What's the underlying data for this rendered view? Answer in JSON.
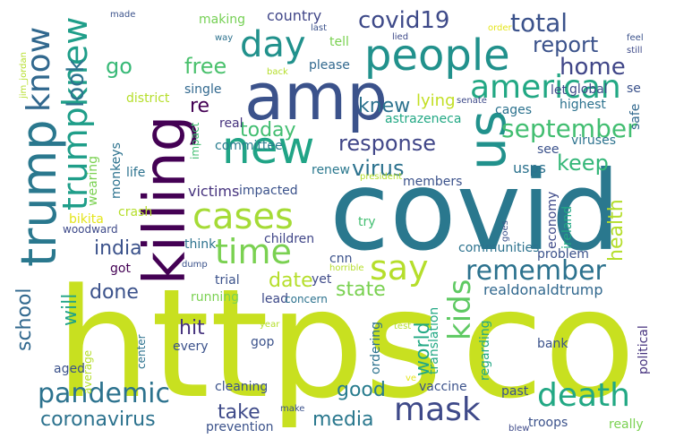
{
  "word_cloud": {
    "words": [
      {
        "text": "https",
        "color": "#c8e020"
      },
      {
        "text": "co",
        "color": "#c8e020"
      },
      {
        "text": "covid",
        "color": "#2a788e"
      },
      {
        "text": "killing",
        "color": "#440154"
      },
      {
        "text": "amp",
        "color": "#3b528b"
      },
      {
        "text": "trump",
        "color": "#2a788e"
      },
      {
        "text": "people",
        "color": "#21918c"
      },
      {
        "text": "us",
        "color": "#21918c"
      },
      {
        "text": "new",
        "color": "#20a486"
      },
      {
        "text": "cases",
        "color": "#a5db36"
      },
      {
        "text": "day",
        "color": "#21918c"
      },
      {
        "text": "time",
        "color": "#7ad151"
      },
      {
        "text": "say",
        "color": "#b5de2b"
      },
      {
        "text": "american",
        "color": "#22a884"
      },
      {
        "text": "trumpknew",
        "color": "#1f9e89"
      },
      {
        "text": "know",
        "color": "#31688e"
      },
      {
        "text": "death",
        "color": "#22a884"
      },
      {
        "text": "mask",
        "color": "#3e4989"
      },
      {
        "text": "pandemic",
        "color": "#2c728e"
      },
      {
        "text": "remember",
        "color": "#2c728e"
      },
      {
        "text": "kids",
        "color": "#5ec962"
      },
      {
        "text": "september",
        "color": "#42be71"
      },
      {
        "text": "covid19",
        "color": "#3e4a89"
      },
      {
        "text": "total",
        "color": "#3b528b"
      },
      {
        "text": "report",
        "color": "#3b528b"
      },
      {
        "text": "home",
        "color": "#404688"
      },
      {
        "text": "look",
        "color": "#2c728e"
      },
      {
        "text": "go",
        "color": "#38b977"
      },
      {
        "text": "free",
        "color": "#4ac16d"
      },
      {
        "text": "response",
        "color": "#404688"
      },
      {
        "text": "virus",
        "color": "#2c728e"
      },
      {
        "text": "knew",
        "color": "#2c728e"
      },
      {
        "text": "keep",
        "color": "#35b779"
      },
      {
        "text": "today",
        "color": "#42be71"
      },
      {
        "text": "re",
        "color": "#440154"
      },
      {
        "text": "date",
        "color": "#b5de2b"
      },
      {
        "text": "health",
        "color": "#b5de2b"
      },
      {
        "text": "india",
        "color": "#3b528b"
      },
      {
        "text": "school",
        "color": "#31688e"
      },
      {
        "text": "will",
        "color": "#20a486"
      },
      {
        "text": "done",
        "color": "#3b528b"
      },
      {
        "text": "state",
        "color": "#7ad151"
      },
      {
        "text": "world",
        "color": "#22a884"
      },
      {
        "text": "hit",
        "color": "#46337e"
      },
      {
        "text": "good",
        "color": "#287c8e"
      },
      {
        "text": "coronavirus",
        "color": "#2c728e"
      },
      {
        "text": "take",
        "color": "#3e4a89"
      },
      {
        "text": "media",
        "color": "#2a788e"
      },
      {
        "text": "realdonaldtrump",
        "color": "#31688e"
      },
      {
        "text": "country",
        "color": "#404688"
      },
      {
        "text": "making",
        "color": "#75d054"
      },
      {
        "text": "tell",
        "color": "#7ad151"
      },
      {
        "text": "please",
        "color": "#31688e"
      },
      {
        "text": "lying",
        "color": "#c2df23"
      },
      {
        "text": "let",
        "color": "#3e4a89"
      },
      {
        "text": "global",
        "color": "#3e4a89"
      },
      {
        "text": "se",
        "color": "#3b528b"
      },
      {
        "text": "highest",
        "color": "#2c728e"
      },
      {
        "text": "safe",
        "color": "#31688e"
      },
      {
        "text": "cages",
        "color": "#2c728e"
      },
      {
        "text": "astrazeneca",
        "color": "#22a884"
      },
      {
        "text": "district",
        "color": "#b5de2b"
      },
      {
        "text": "single",
        "color": "#31688e"
      },
      {
        "text": "real",
        "color": "#46337e"
      },
      {
        "text": "committee",
        "color": "#287c8e"
      },
      {
        "text": "impact",
        "color": "#42be71"
      },
      {
        "text": "viruses",
        "color": "#2c728e"
      },
      {
        "text": "usps",
        "color": "#2c728e"
      },
      {
        "text": "see",
        "color": "#3b528b"
      },
      {
        "text": "wearing",
        "color": "#7ad151"
      },
      {
        "text": "monkeys",
        "color": "#2c728e"
      },
      {
        "text": "life",
        "color": "#2c728e"
      },
      {
        "text": "victims",
        "color": "#46337e"
      },
      {
        "text": "impacted",
        "color": "#3b528b"
      },
      {
        "text": "renew",
        "color": "#2a788e"
      },
      {
        "text": "members",
        "color": "#3b528b"
      },
      {
        "text": "ireland",
        "color": "#22a884"
      },
      {
        "text": "economy",
        "color": "#3e4a89"
      },
      {
        "text": "bikita",
        "color": "#e4e51b"
      },
      {
        "text": "woodward",
        "color": "#3e4a89"
      },
      {
        "text": "crash",
        "color": "#b5de2b"
      },
      {
        "text": "try",
        "color": "#42be71"
      },
      {
        "text": "children",
        "color": "#404688"
      },
      {
        "text": "think",
        "color": "#2c728e"
      },
      {
        "text": "got",
        "color": "#440154"
      },
      {
        "text": "trial",
        "color": "#3b528b"
      },
      {
        "text": "running",
        "color": "#7ad151"
      },
      {
        "text": "lead",
        "color": "#3e4a89"
      },
      {
        "text": "concern",
        "color": "#2c728e"
      },
      {
        "text": "cnn",
        "color": "#3b528b"
      },
      {
        "text": "yet",
        "color": "#3e4a89"
      },
      {
        "text": "communities",
        "color": "#2c728e"
      },
      {
        "text": "problem",
        "color": "#3b528b"
      },
      {
        "text": "translation",
        "color": "#22a884"
      },
      {
        "text": "gop",
        "color": "#3b528b"
      },
      {
        "text": "every",
        "color": "#3b528b"
      },
      {
        "text": "average",
        "color": "#b5de2b"
      },
      {
        "text": "center",
        "color": "#2c728e"
      },
      {
        "text": "aged",
        "color": "#3b528b"
      },
      {
        "text": "cleaning",
        "color": "#3b528b"
      },
      {
        "text": "prevention",
        "color": "#3b528b"
      },
      {
        "text": "troops",
        "color": "#3b528b"
      },
      {
        "text": "really",
        "color": "#7ad151"
      },
      {
        "text": "vaccine",
        "color": "#3b528b"
      },
      {
        "text": "past",
        "color": "#3b528b"
      },
      {
        "text": "bank",
        "color": "#3b528b"
      },
      {
        "text": "political",
        "color": "#46337e"
      },
      {
        "text": "regarding",
        "color": "#22a884"
      },
      {
        "text": "ordering",
        "color": "#2c728e"
      },
      {
        "text": "made",
        "color": "#3b528b"
      },
      {
        "text": "way",
        "color": "#2c728e"
      },
      {
        "text": "last",
        "color": "#3b528b"
      },
      {
        "text": "lied",
        "color": "#3e4a89"
      },
      {
        "text": "order",
        "color": "#e4e51b"
      },
      {
        "text": "feel",
        "color": "#3b528b"
      },
      {
        "text": "still",
        "color": "#3e4a89"
      },
      {
        "text": "back",
        "color": "#b5de2b"
      },
      {
        "text": "senate",
        "color": "#3e4a89"
      },
      {
        "text": "president",
        "color": "#b5de2b"
      },
      {
        "text": "jim_jordan",
        "color": "#b5de2b"
      },
      {
        "text": "dump",
        "color": "#3b528b"
      },
      {
        "text": "horrible",
        "color": "#b5de2b"
      },
      {
        "text": "goes",
        "color": "#3b528b"
      },
      {
        "text": "year",
        "color": "#b5de2b"
      },
      {
        "text": "test",
        "color": "#b5de2b"
      },
      {
        "text": "ve",
        "color": "#e4e51b"
      },
      {
        "text": "make",
        "color": "#3b528b"
      },
      {
        "text": "blew",
        "color": "#3e4a89"
      }
    ]
  }
}
